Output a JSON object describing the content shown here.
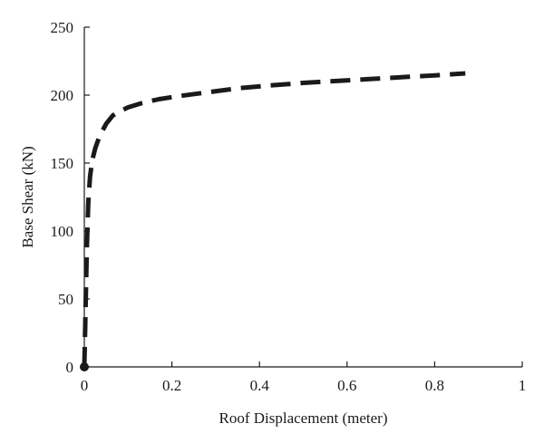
{
  "chart_data": {
    "type": "line",
    "title": "",
    "xlabel": "Roof Displacement (meter)",
    "ylabel": "Base Shear (kN)",
    "xlim": [
      0,
      1
    ],
    "ylim": [
      0,
      250
    ],
    "xticks": [
      0,
      0.2,
      0.4,
      0.6,
      0.8,
      1
    ],
    "yticks": [
      0,
      50,
      100,
      150,
      200,
      250
    ],
    "xtick_labels": [
      "0",
      "0.2",
      "0.4",
      "0.6",
      "0.8",
      "1"
    ],
    "ytick_labels": [
      "0",
      "50",
      "100",
      "150",
      "200",
      "250"
    ],
    "grid": false,
    "legend": false,
    "series": [
      {
        "style": "dashed",
        "color": "#1a1a1a",
        "start_marker": "filled-circle",
        "x": [
          0,
          0.002,
          0.004,
          0.006,
          0.009,
          0.013,
          0.018,
          0.025,
          0.035,
          0.05,
          0.065,
          0.08,
          0.1,
          0.13,
          0.17,
          0.22,
          0.28,
          0.35,
          0.42,
          0.5,
          0.58,
          0.66,
          0.74,
          0.8,
          0.87
        ],
        "y": [
          0,
          30,
          60,
          90,
          120,
          140,
          152,
          161,
          170,
          179,
          185,
          188,
          191,
          194,
          197,
          199.5,
          202,
          205,
          207,
          209,
          210.5,
          212,
          213.5,
          214.5,
          216
        ]
      }
    ]
  }
}
